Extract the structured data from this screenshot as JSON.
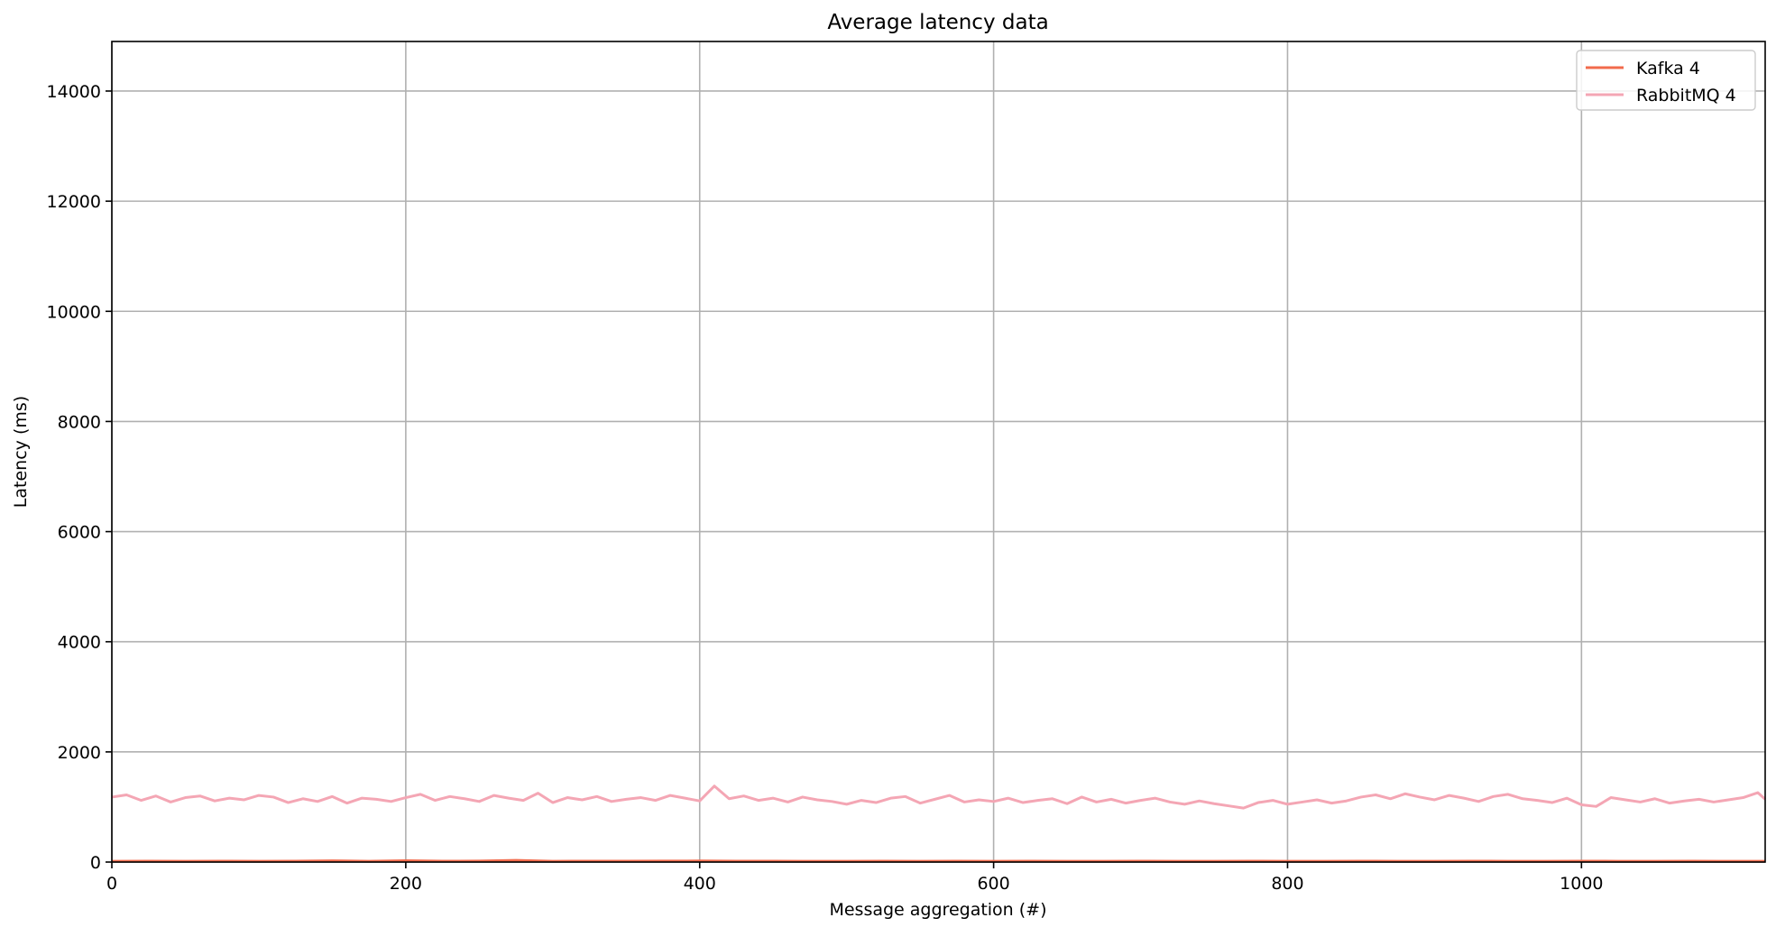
{
  "chart_data": {
    "type": "line",
    "title": "Average latency data",
    "xlabel": "Message aggregation (#)",
    "ylabel": "Latency (ms)",
    "xlim": [
      0,
      1125
    ],
    "ylim": [
      0,
      14900
    ],
    "xticks": [
      0,
      200,
      400,
      600,
      800,
      1000
    ],
    "yticks": [
      0,
      2000,
      4000,
      6000,
      8000,
      10000,
      12000,
      14000
    ],
    "grid": true,
    "legend_position": "top-right",
    "series": [
      {
        "name": "Kafka 4",
        "color": "#f26b4c",
        "x": [
          0,
          25,
          50,
          75,
          100,
          125,
          150,
          175,
          200,
          225,
          250,
          275,
          300,
          325,
          350,
          375,
          400,
          425,
          450,
          475,
          500,
          525,
          550,
          575,
          600,
          625,
          650,
          675,
          700,
          725,
          750,
          775,
          800,
          825,
          850,
          875,
          900,
          925,
          950,
          975,
          1000,
          1025,
          1050,
          1075,
          1100,
          1125
        ],
        "y": [
          15,
          16,
          14,
          17,
          15,
          16,
          22,
          15,
          25,
          16,
          18,
          30,
          15,
          17,
          16,
          18,
          20,
          17,
          16,
          15,
          14,
          16,
          15,
          17,
          14,
          16,
          15,
          14,
          16,
          15,
          14,
          16,
          15,
          14,
          16,
          15,
          14,
          16,
          15,
          14,
          16,
          15,
          14,
          16,
          15,
          15
        ]
      },
      {
        "name": "RabbitMQ 4",
        "color": "#f4a6b4",
        "x": [
          0,
          10,
          20,
          30,
          40,
          50,
          60,
          70,
          80,
          90,
          100,
          110,
          120,
          130,
          140,
          150,
          160,
          170,
          180,
          190,
          200,
          210,
          220,
          230,
          240,
          250,
          260,
          270,
          280,
          290,
          300,
          310,
          320,
          330,
          340,
          350,
          360,
          370,
          380,
          390,
          400,
          410,
          420,
          430,
          440,
          450,
          460,
          470,
          480,
          490,
          500,
          510,
          520,
          530,
          540,
          550,
          560,
          570,
          580,
          590,
          600,
          610,
          620,
          630,
          640,
          650,
          660,
          670,
          680,
          690,
          700,
          710,
          720,
          730,
          740,
          750,
          760,
          770,
          780,
          790,
          800,
          810,
          820,
          830,
          840,
          850,
          860,
          870,
          880,
          890,
          900,
          910,
          920,
          930,
          940,
          950,
          960,
          970,
          980,
          990,
          1000,
          1010,
          1020,
          1030,
          1040,
          1050,
          1060,
          1070,
          1080,
          1090,
          1100,
          1110,
          1120,
          1125
        ],
        "y": [
          1180,
          1220,
          1120,
          1200,
          1090,
          1170,
          1200,
          1110,
          1160,
          1130,
          1210,
          1180,
          1080,
          1150,
          1100,
          1190,
          1070,
          1160,
          1140,
          1100,
          1170,
          1230,
          1120,
          1190,
          1150,
          1100,
          1210,
          1160,
          1120,
          1250,
          1080,
          1170,
          1130,
          1190,
          1100,
          1140,
          1170,
          1120,
          1210,
          1160,
          1110,
          1380,
          1150,
          1200,
          1120,
          1160,
          1090,
          1180,
          1130,
          1100,
          1050,
          1120,
          1080,
          1160,
          1190,
          1070,
          1140,
          1210,
          1090,
          1130,
          1100,
          1160,
          1080,
          1120,
          1150,
          1060,
          1180,
          1090,
          1140,
          1070,
          1120,
          1160,
          1090,
          1050,
          1110,
          1060,
          1020,
          980,
          1080,
          1120,
          1050,
          1090,
          1130,
          1070,
          1110,
          1180,
          1220,
          1150,
          1240,
          1180,
          1130,
          1210,
          1160,
          1100,
          1190,
          1230,
          1150,
          1120,
          1080,
          1160,
          1040,
          1010,
          1170,
          1130,
          1090,
          1150,
          1070,
          1110,
          1140,
          1090,
          1130,
          1170,
          1260,
          1140
        ]
      }
    ]
  }
}
